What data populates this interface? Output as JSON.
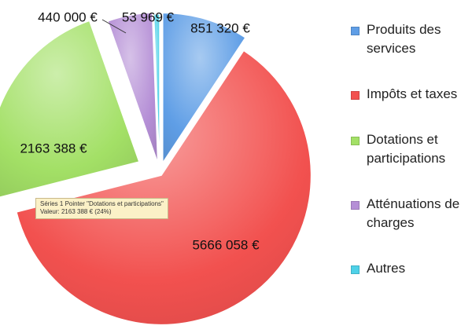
{
  "chart_data": {
    "type": "pie",
    "title": "",
    "categories": [
      "Produits des services",
      "Impôts et taxes",
      "Dotations et participations",
      "Atténuations de charges",
      "Autres"
    ],
    "values": [
      851320,
      5666058,
      2163388,
      440000,
      53969
    ],
    "data_labels": [
      "851 320 €",
      "5666 058 €",
      "2163 388 €",
      "440 000 €",
      "53 969 €"
    ],
    "colors": [
      "#5f9ee6",
      "#f2514f",
      "#a3e066",
      "#b58fd6",
      "#4ed1e8"
    ],
    "exploded": true,
    "legend_position": "right"
  },
  "legend": {
    "items": [
      {
        "label": "Produits des services",
        "color": "#5f9ee6"
      },
      {
        "label": "Impôts et taxes",
        "color": "#f2514f"
      },
      {
        "label": "Dotations et participations",
        "color": "#a3e066"
      },
      {
        "label": "Atténuations de charges",
        "color": "#b58fd6"
      },
      {
        "label": "Autres",
        "color": "#4ed1e8"
      }
    ]
  },
  "tooltip": {
    "line1": "Séries 1 Pointer \"Dotations et participations\"",
    "line2": "Valeur: 2163 388 € (24%)"
  }
}
